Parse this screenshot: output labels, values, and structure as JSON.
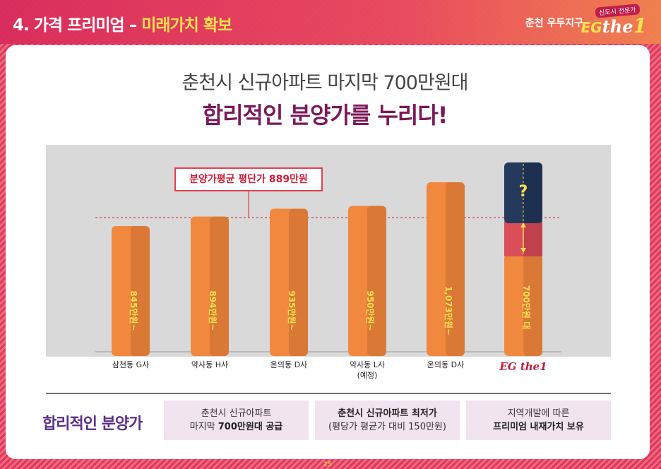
{
  "header": {
    "title_prefix": "4. 가격 프리미엄 – ",
    "title_highlight": "미래가치 확보",
    "brand_place": "춘천 우두지구",
    "brand_tag": "신도시 전문가",
    "brand_logo_eg": "EG",
    "brand_logo_the": "the",
    "brand_logo_one": "1"
  },
  "headline": "춘천시 신규아파트 마지막 700만원대",
  "subhead": "합리적인 분양가를 누리다!",
  "chart_data": {
    "type": "bar",
    "categories": [
      "삼천동 G사",
      "약사동 H사",
      "온의동 D사",
      "약사동 L사 (예정)",
      "온의동 D사",
      "EG the1"
    ],
    "value_labels": [
      "845만원~",
      "894만원~",
      "935만원~",
      "950만원~",
      "1,073만원~",
      "700만원 대"
    ],
    "values": [
      845,
      894,
      935,
      950,
      1073,
      700
    ],
    "average_label": "분양가평균 평단가 889만원",
    "average_value": 889,
    "unknown_mark": "?",
    "colors": {
      "bar": "#f0883e",
      "bar_shade": "#c86b30",
      "premium_red": "#d94e58",
      "future_navy": "#24395c",
      "avg_line": "#e04050"
    }
  },
  "summary": {
    "title": "합리적인 분양가",
    "boxes": [
      {
        "line1": "춘천시 신규아파트",
        "line2_pre": "마지막 ",
        "line2_bold": "700만원대 공급"
      },
      {
        "line1_bold": "춘천시 신규아파트 최저가",
        "line2": "(평당가 평균가 대비 150만원)"
      },
      {
        "line1": "지역개발에 따른",
        "line2_bold": "프리미엄 내재가치 보유"
      }
    ]
  },
  "page_number": "25"
}
